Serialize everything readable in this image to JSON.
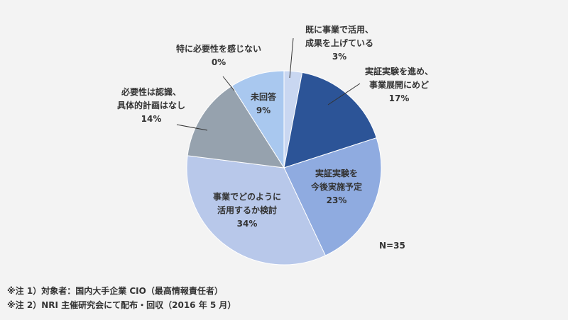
{
  "chart_data": {
    "type": "pie",
    "start_angle_deg": 0,
    "direction": "clockwise",
    "slices": [
      {
        "label_lines": [
          "既に事業で活用、",
          "成果を上げている"
        ],
        "pct_text": "3%",
        "value": 3,
        "color": "#c9d7f1",
        "label_position": "outside"
      },
      {
        "label_lines": [
          "実証実験を進め、",
          "事業展開にめど"
        ],
        "pct_text": "17%",
        "value": 17,
        "color": "#2c5497",
        "label_position": "outside"
      },
      {
        "label_lines": [
          "実証実験を",
          "今後実施予定"
        ],
        "pct_text": "23%",
        "value": 23,
        "color": "#8fabe0",
        "label_position": "inside"
      },
      {
        "label_lines": [
          "事業でどのように",
          "活用するか検討"
        ],
        "pct_text": "34%",
        "value": 34,
        "color": "#b8c8ea",
        "label_position": "inside"
      },
      {
        "label_lines": [
          "必要性は認識、",
          "具体的計画はなし"
        ],
        "pct_text": "14%",
        "value": 14,
        "color": "#96a2ae",
        "label_position": "outside"
      },
      {
        "label_lines": [
          "特に必要性を感じない"
        ],
        "pct_text": "0%",
        "value": 0,
        "color": "#cccccc",
        "label_position": "outside"
      },
      {
        "label_lines": [
          "未回答"
        ],
        "pct_text": "9%",
        "value": 9,
        "color": "#a9c8ef",
        "label_position": "inside"
      }
    ],
    "sample_size_text": "N=35"
  },
  "notes": [
    "※注 1）対象者：国内大手企業 CIO（最高情報責任者）",
    "※注 2）NRI 主催研究会にて配布・回収（2016 年 5 月）"
  ]
}
